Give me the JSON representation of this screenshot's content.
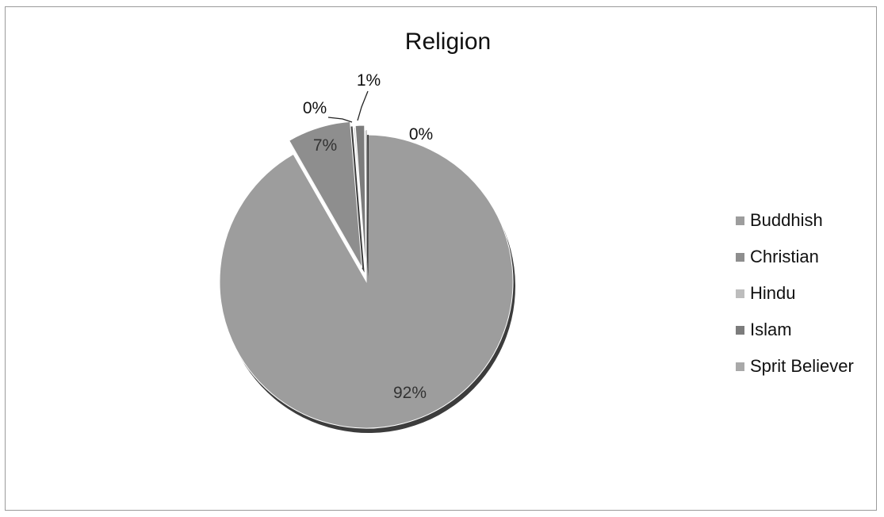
{
  "chart_data": {
    "type": "pie",
    "title": "Religion",
    "categories": [
      "Buddhish",
      "Christian",
      "Hindu",
      "Islam",
      "Sprit Believer"
    ],
    "values": [
      92,
      7,
      0,
      1,
      0
    ],
    "data_labels": [
      "92%",
      "7%",
      "0%",
      "1%",
      "0%"
    ],
    "colors": [
      "#9d9d9d",
      "#8e8e8e",
      "#bdbdbd",
      "#7c7c7c",
      "#a9a9a9"
    ],
    "legend_position": "right",
    "exploded": true
  }
}
